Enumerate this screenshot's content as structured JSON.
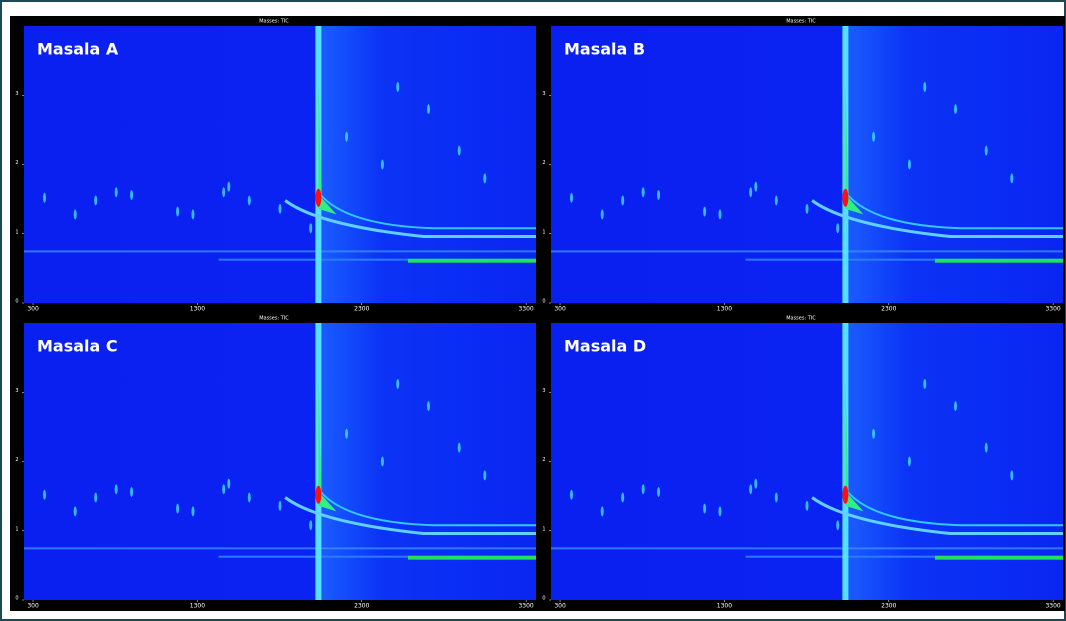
{
  "chart_data": [
    {
      "type": "heatmap",
      "title": "Masala A",
      "subtitle": "Masses: TIC",
      "xlim": [
        245,
        3360
      ],
      "ylim": [
        0,
        4
      ],
      "xticks": [
        300,
        1300,
        2300,
        3300
      ],
      "yticks": [
        0,
        1,
        2,
        3
      ]
    },
    {
      "type": "heatmap",
      "title": "Masala B",
      "subtitle": "Masses: TIC",
      "xlim": [
        245,
        3360
      ],
      "ylim": [
        0,
        4
      ],
      "xticks": [
        300,
        1300,
        2300,
        3300
      ],
      "yticks": [
        0,
        1,
        2,
        3
      ]
    },
    {
      "type": "heatmap",
      "title": "Masala C",
      "subtitle": "Masses: TIC",
      "xlim": [
        245,
        3360
      ],
      "ylim": [
        0,
        4
      ],
      "xticks": [
        300,
        1300,
        2300,
        3300
      ],
      "yticks": [
        0,
        1,
        2,
        3
      ]
    },
    {
      "type": "heatmap",
      "title": "Masala D",
      "subtitle": "Masses: TIC",
      "xlim": [
        245,
        3360
      ],
      "ylim": [
        0,
        4
      ],
      "xticks": [
        300,
        1300,
        2300,
        3300
      ],
      "yticks": [
        0,
        1,
        2,
        3
      ]
    }
  ]
}
